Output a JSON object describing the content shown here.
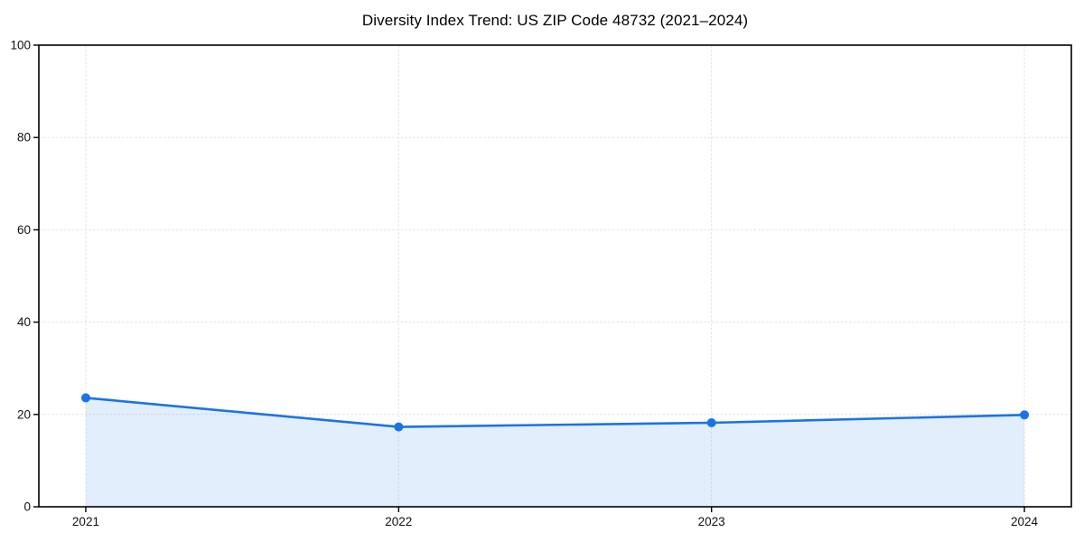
{
  "chart_data": {
    "type": "area",
    "title": "Diversity Index Trend: US ZIP Code 48732 (2021–2024)",
    "x": [
      2021,
      2022,
      2023,
      2024
    ],
    "x_labels": [
      "2021",
      "2022",
      "2023",
      "2024"
    ],
    "values": [
      23.6,
      17.3,
      18.2,
      19.9
    ],
    "xlabel": "",
    "ylabel": "",
    "ylim": [
      0,
      100
    ],
    "yticks": [
      0,
      20,
      40,
      60,
      80,
      100
    ],
    "grid": true,
    "legend": "none",
    "marker": "circle",
    "line_color": "#1a73e8",
    "fill_color": "rgba(26,115,232,0.12)",
    "grid_color": "#e3e3e3",
    "axis_color": "#000000",
    "tick_label_color": "#111111",
    "title_color": "#000000",
    "background_color": "#ffffff"
  }
}
